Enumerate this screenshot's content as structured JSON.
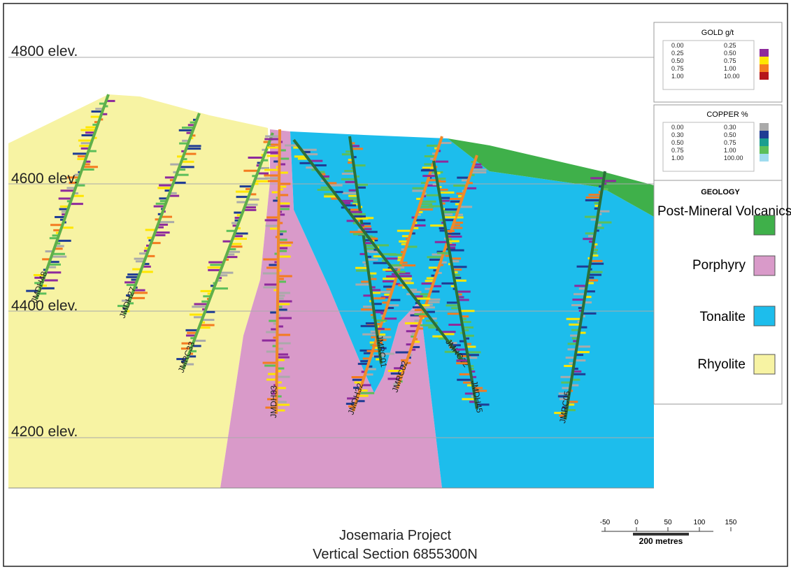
{
  "elevations": [
    "4800 elev.",
    "4600 elev.",
    "4400 elev.",
    "4200 elev."
  ],
  "gold_legend": {
    "title": "GOLD g/t",
    "rows": [
      [
        "0.00",
        "0.25"
      ],
      [
        "0.25",
        "0.50"
      ],
      [
        "0.50",
        "0.75"
      ],
      [
        "0.75",
        "1.00"
      ],
      [
        "1.00",
        "10.00"
      ]
    ]
  },
  "copper_legend": {
    "title": "COPPER %",
    "rows": [
      [
        "0.00",
        "0.30"
      ],
      [
        "0.30",
        "0.50"
      ],
      [
        "0.50",
        "0.75"
      ],
      [
        "0.75",
        "1.00"
      ],
      [
        "1.00",
        "100.00"
      ]
    ]
  },
  "geology": {
    "title": "GEOLOGY",
    "units": [
      "Post-Mineral Volcanics",
      "Porphyry",
      "Tonalite",
      "Rhyolite"
    ]
  },
  "drill_holes": [
    "JMDH48",
    "JMDH27",
    "JMRC33",
    "JMDH33",
    "JMDH32",
    "JMRC01",
    "JMRC02",
    "JMRC12",
    "JMDH45",
    "JMRC05"
  ],
  "scale": {
    "ticks": [
      "-50",
      "0",
      "50",
      "100",
      "150"
    ],
    "label": "200 metres"
  },
  "title": [
    "Josemaria Project",
    "Vertical Section 6855300N"
  ]
}
